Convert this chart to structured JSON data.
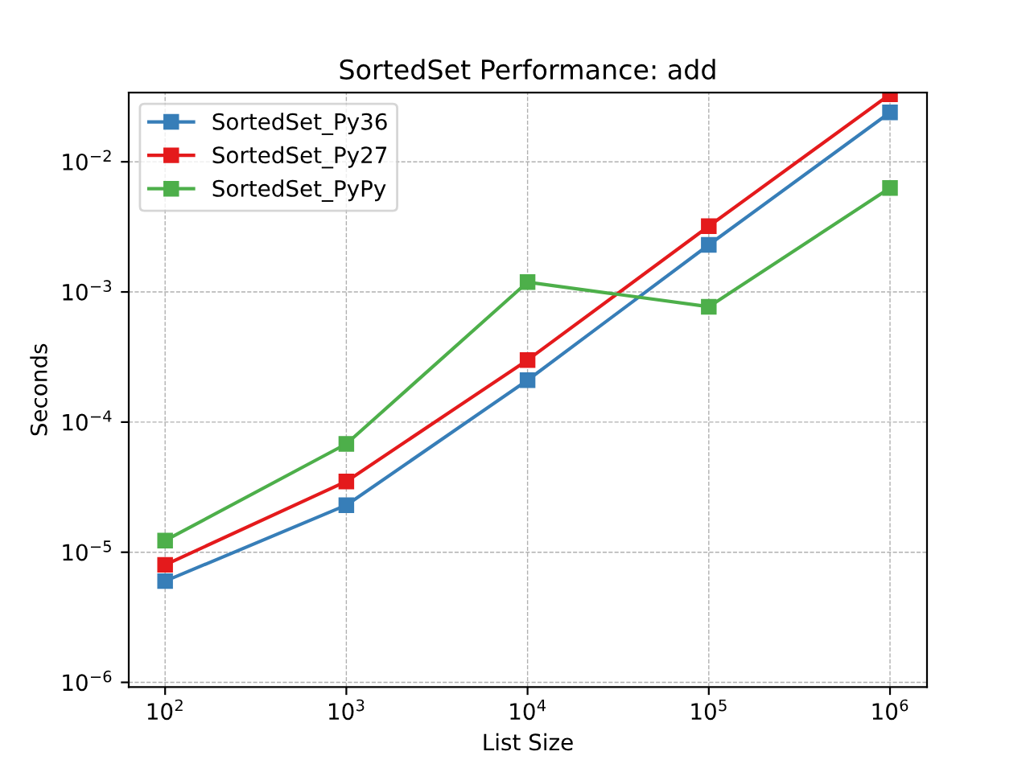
{
  "chart_data": {
    "type": "line",
    "title": "SortedSet Performance: add",
    "xlabel": "List Size",
    "ylabel": "Seconds",
    "x": [
      100,
      1000,
      10000,
      100000,
      1000000
    ],
    "series": [
      {
        "name": "SortedSet_Py36",
        "color": "#377eb8",
        "values": [
          6e-06,
          2.3e-05,
          0.00021,
          0.0023,
          0.024
        ]
      },
      {
        "name": "SortedSet_Py27",
        "color": "#e41a1c",
        "values": [
          8e-06,
          3.5e-05,
          0.0003,
          0.0032,
          0.033
        ]
      },
      {
        "name": "SortedSet_PyPy",
        "color": "#4daf4a",
        "values": [
          1.23e-05,
          6.8e-05,
          0.00119,
          0.00077,
          0.0063
        ]
      }
    ],
    "log": "xy",
    "xlim": [
      63,
      1600000.0
    ],
    "ylim": [
      9.2e-07,
      0.034
    ],
    "xticks": [
      {
        "value": 100,
        "label": "10$^{2}$"
      },
      {
        "value": 1000,
        "label": "10$^{3}$"
      },
      {
        "value": 10000,
        "label": "10$^{4}$"
      },
      {
        "value": 100000,
        "label": "10$^{5}$"
      },
      {
        "value": 1000000,
        "label": "10$^{6}$"
      }
    ],
    "yticks": [
      {
        "value": 1e-06,
        "label": "10$^{−6}$"
      },
      {
        "value": 1e-05,
        "label": "10$^{−5}$"
      },
      {
        "value": 0.0001,
        "label": "10$^{−4}$"
      },
      {
        "value": 0.001,
        "label": "10$^{−3}$"
      },
      {
        "value": 0.01,
        "label": "10$^{−2}$"
      }
    ],
    "grid": true,
    "legend": "top left",
    "marker": "square",
    "line_style": "solid"
  }
}
